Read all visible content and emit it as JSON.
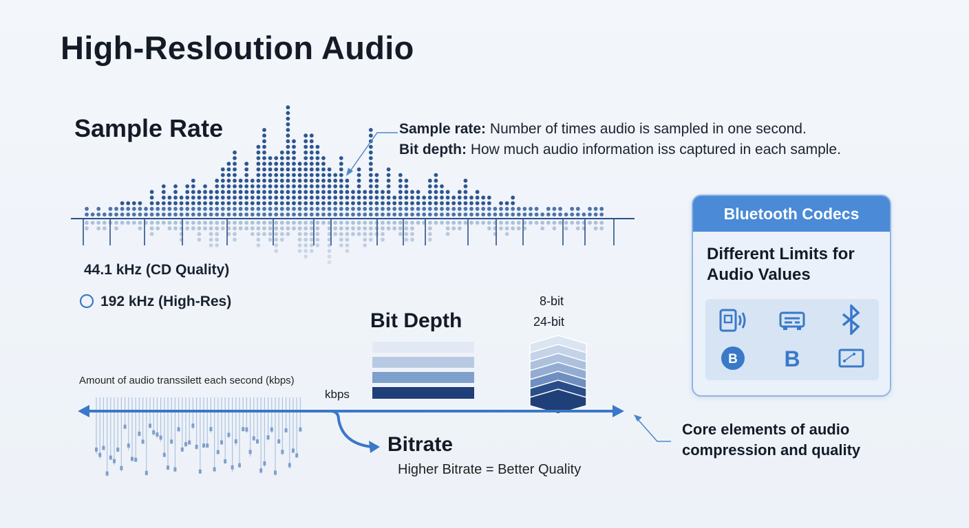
{
  "title": "High-Resloution Audio",
  "sample_rate": {
    "heading": "Sample Rate",
    "label_cd": "44.1 kHz (CD Quality)",
    "label_hires": "192 kHz (High-Res)"
  },
  "annotation": {
    "sample_rate_term": "Sample rate:",
    "sample_rate_desc": "Number of times audio is sampled in one second.",
    "bit_depth_term": "Bit depth:",
    "bit_depth_desc": "How much audio information iss captured in each sample."
  },
  "bit_depth": {
    "heading": "Bit Depth",
    "label_8bit": "8-bit",
    "label_24bit": "24-bit"
  },
  "bitrate": {
    "description": "Amount of audio transsilett each second (kbps)",
    "unit": "kbps",
    "heading": "Bitrate",
    "caption": "Higher Bitrate = Better Quality"
  },
  "codecs_card": {
    "header": "Bluetooth Codecs",
    "subtitle_line1": "Different Limits for",
    "subtitle_line2": "Audio Values",
    "icons": [
      "speaker-device-icon",
      "receiver-icon",
      "bluetooth-icon",
      "bluetooth-circle-icon",
      "b-letter-icon",
      "card-device-icon"
    ]
  },
  "footer_note": {
    "line1": "Core elements of audio",
    "line2": "compression and quality"
  },
  "colors": {
    "accent": "#3a78c8",
    "dark_blue": "#1f3f78",
    "card_header": "#4a8ad6"
  }
}
